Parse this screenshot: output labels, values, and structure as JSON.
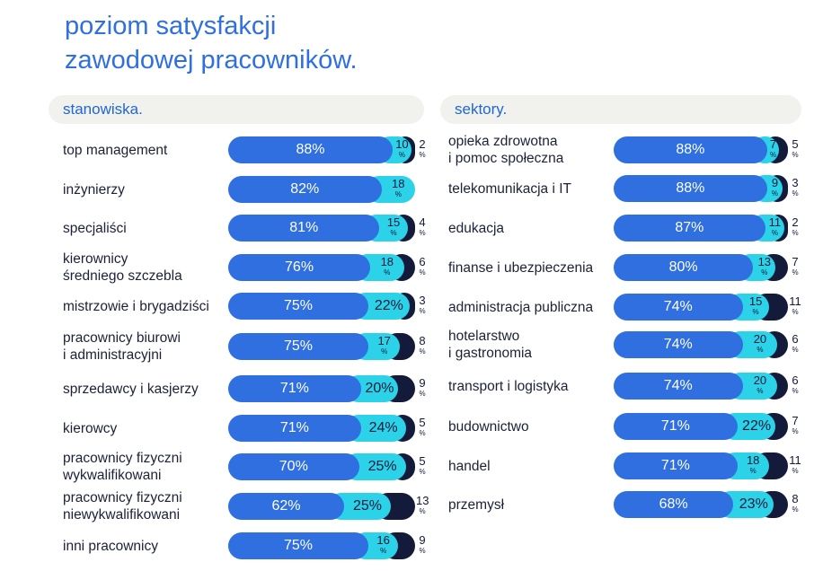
{
  "title_line1": "poziom satysfakcji",
  "title_line2": "zawodowej pracowników.",
  "left_header": "stanowiska.",
  "right_header": "sektory.",
  "colors": {
    "satisfied": "#2f6fe0",
    "neutral": "#2bd2e8",
    "dissatisfied": "#131a3a",
    "title": "#2f6fe0"
  },
  "chart_data": [
    {
      "type": "bar",
      "stacked": true,
      "orientation": "horizontal",
      "title": "stanowiska.",
      "categories": [
        "top management",
        "inżynierzy",
        "specjaliści",
        "kierownicy\nśredniego szczebla",
        "mistrzowie i brygadziści",
        "pracownicy biurowi\ni administracyjni",
        "sprzedawcy i kasjerzy",
        "kierowcy",
        "pracownicy fizyczni\nwykwalifikowani",
        "pracownicy fizyczni\nniewykwalifikowani",
        "inni pracownicy"
      ],
      "series": [
        {
          "values": [
            88,
            82,
            81,
            76,
            75,
            75,
            71,
            71,
            70,
            62,
            75
          ]
        },
        {
          "values": [
            10,
            18,
            15,
            18,
            22,
            17,
            20,
            24,
            25,
            25,
            16
          ]
        },
        {
          "values": [
            2,
            null,
            4,
            6,
            3,
            8,
            9,
            5,
            5,
            13,
            9
          ]
        }
      ]
    },
    {
      "type": "bar",
      "stacked": true,
      "orientation": "horizontal",
      "title": "sektory.",
      "categories": [
        "opieka zdrowotna\ni pomoc społeczna",
        "telekomunikacja i IT",
        "edukacja",
        "finanse i ubezpieczenia",
        "administracja publiczna",
        "hotelarstwo\ni gastronomia",
        "transport i logistyka",
        "budownictwo",
        "handel",
        "przemysł"
      ],
      "series": [
        {
          "values": [
            88,
            88,
            87,
            80,
            74,
            74,
            74,
            71,
            71,
            68
          ]
        },
        {
          "values": [
            7,
            9,
            11,
            13,
            15,
            20,
            20,
            22,
            18,
            23
          ]
        },
        {
          "values": [
            5,
            3,
            2,
            7,
            11,
            6,
            6,
            7,
            11,
            8
          ]
        }
      ]
    }
  ]
}
